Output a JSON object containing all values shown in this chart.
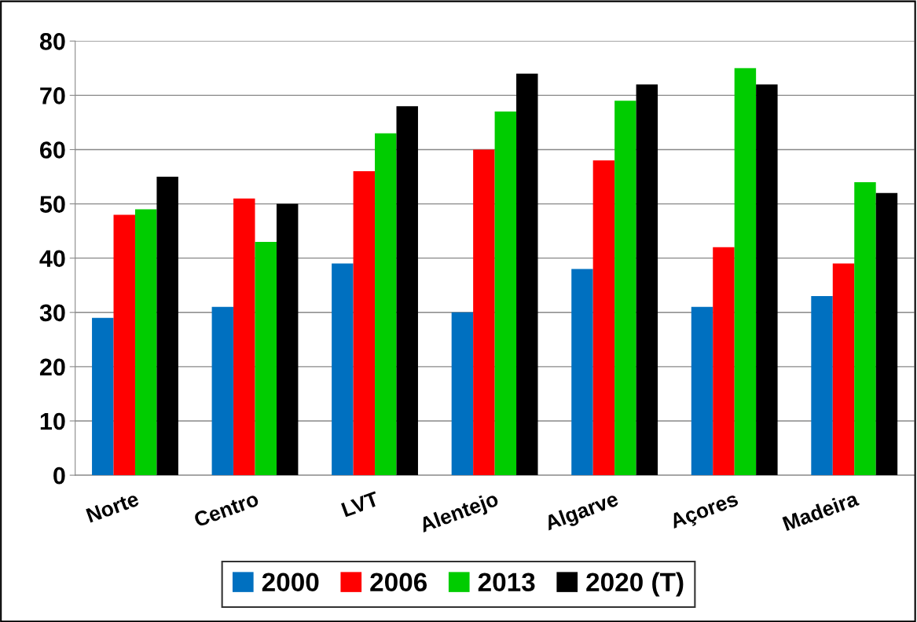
{
  "chart_data": {
    "type": "bar",
    "categories": [
      "Norte",
      "Centro",
      "LVT",
      "Alentejo",
      "Algarve",
      "Açores",
      "Madeira"
    ],
    "series": [
      {
        "name": "2000",
        "color": "#0070c0",
        "values": [
          29,
          31,
          39,
          30,
          38,
          31,
          33
        ]
      },
      {
        "name": "2006",
        "color": "#ff0000",
        "values": [
          48,
          51,
          56,
          60,
          58,
          42,
          39
        ]
      },
      {
        "name": "2013",
        "color": "#00cc00",
        "values": [
          49,
          43,
          63,
          67,
          69,
          75,
          54
        ]
      },
      {
        "name": "2020 (T)",
        "color": "#000000",
        "values": [
          55,
          50,
          68,
          74,
          72,
          72,
          52
        ]
      }
    ],
    "ylim": [
      0,
      80
    ],
    "yticks": [
      0,
      10,
      20,
      30,
      40,
      50,
      60,
      70,
      80
    ],
    "grid": "y",
    "legend": "bottom"
  }
}
